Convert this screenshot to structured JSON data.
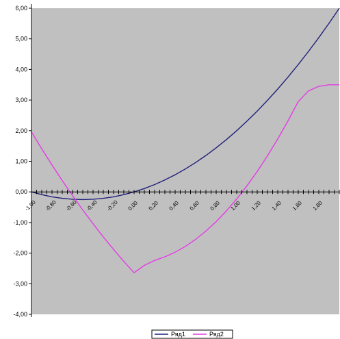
{
  "chart_data": {
    "type": "line",
    "title": "",
    "xlabel": "",
    "ylabel": "",
    "x": [
      -1.0,
      -0.9,
      -0.8,
      -0.7,
      -0.6,
      -0.5,
      -0.4,
      -0.3,
      -0.2,
      -0.1,
      0.0,
      0.1,
      0.2,
      0.3,
      0.4,
      0.5,
      0.6,
      0.7,
      0.8,
      0.9,
      1.0,
      1.1,
      1.2,
      1.3,
      1.4,
      1.5,
      1.6,
      1.7,
      1.8,
      1.9,
      2.0
    ],
    "series": [
      {
        "name": "Ряд1",
        "color": "#1f1f7a",
        "values": [
          0.0,
          -0.09,
          -0.16,
          -0.21,
          -0.24,
          -0.25,
          -0.24,
          -0.21,
          -0.16,
          -0.09,
          0.0,
          0.11,
          0.24,
          0.39,
          0.56,
          0.75,
          0.96,
          1.19,
          1.44,
          1.71,
          2.0,
          2.31,
          2.64,
          2.99,
          3.36,
          3.75,
          4.16,
          4.59,
          5.04,
          5.51,
          6.0
        ]
      },
      {
        "name": "Ряд2",
        "color": "#e43be4",
        "values": [
          1.96,
          1.41,
          0.88,
          0.37,
          -0.12,
          -0.59,
          -1.04,
          -1.47,
          -1.88,
          -2.27,
          -2.64,
          -2.4,
          -2.24,
          -2.12,
          -1.97,
          -1.78,
          -1.55,
          -1.28,
          -0.97,
          -0.62,
          -0.23,
          0.2,
          0.67,
          1.18,
          1.73,
          2.32,
          2.95,
          3.3,
          3.45,
          3.5,
          3.5
        ]
      }
    ],
    "ylim": [
      -4.0,
      6.0
    ],
    "xlim": [
      -1.0,
      2.0
    ],
    "yticks": [
      "-4,00",
      "-3,00",
      "-2,00",
      "-1,00",
      "0,00",
      "1,00",
      "2,00",
      "3,00",
      "4,00",
      "5,00",
      "6,00"
    ],
    "ytick_values": [
      -4,
      -3,
      -2,
      -1,
      0,
      1,
      2,
      3,
      4,
      5,
      6
    ],
    "xticks": [
      "-1,00",
      "-0,80",
      "-0,60",
      "-0,40",
      "-0,20",
      "0,00",
      "0,20",
      "0,40",
      "0,60",
      "0,80",
      "1,00",
      "1,20",
      "1,40",
      "1,60",
      "1,80"
    ],
    "xtick_values": [
      -1.0,
      -0.8,
      -0.6,
      -0.4,
      -0.2,
      0.0,
      0.2,
      0.4,
      0.6,
      0.8,
      1.0,
      1.2,
      1.4,
      1.6,
      1.8
    ],
    "grid": false,
    "plot_background": "#c0c0c0",
    "legend_position": "bottom-right"
  }
}
